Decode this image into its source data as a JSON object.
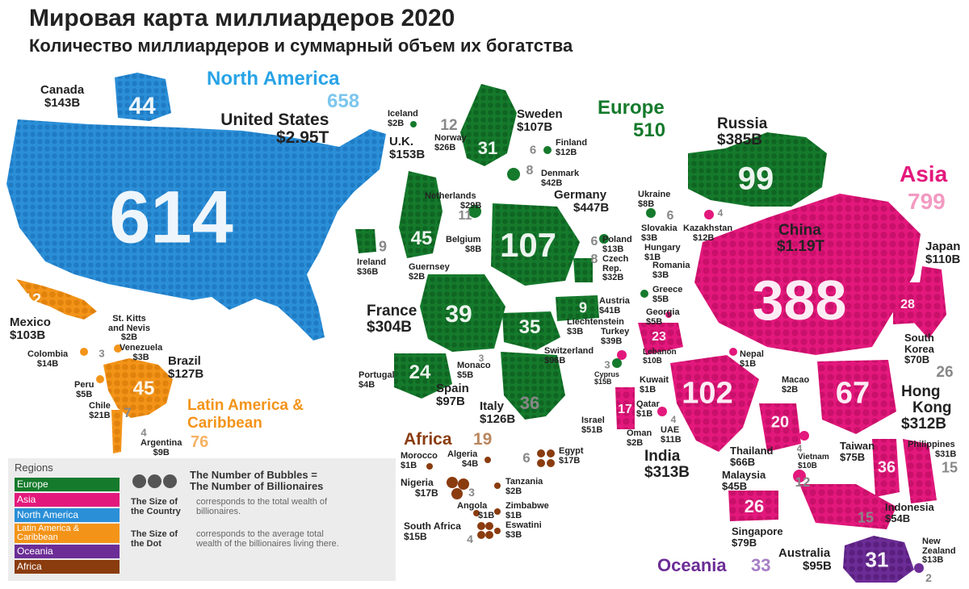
{
  "title": "Мировая карта миллиардеров 2020",
  "subtitle": "Количество миллиардеров и суммарный объем их богатства",
  "colors": {
    "north_america": "#2b8fd8",
    "north_america_label": "#28a3e6",
    "europe": "#157a2c",
    "asia": "#e3187c",
    "latin_america": "#f39419",
    "africa": "#8a3c0f",
    "oceania": "#6c2d96"
  },
  "regions": {
    "north_america": {
      "name": "North America",
      "count": "658"
    },
    "europe": {
      "name": "Europe",
      "count": "510"
    },
    "asia": {
      "name": "Asia",
      "count": "799"
    },
    "latin_america": {
      "name": "Latin America & Caribbean",
      "name_line1": "Latin America &",
      "name_line2": "Caribbean",
      "count": "76"
    },
    "africa": {
      "name": "Africa",
      "count": "19"
    },
    "oceania": {
      "name": "Oceania",
      "count": "33"
    }
  },
  "countries": {
    "canada": {
      "name": "Canada",
      "wealth": "$143B",
      "count": "44"
    },
    "usa": {
      "name": "United States",
      "wealth": "$2.95T",
      "count": "614"
    },
    "mexico": {
      "name": "Mexico",
      "wealth": "$103B",
      "count": "12"
    },
    "st_kitts": {
      "name_line1": "St. Kitts",
      "name_line2": "and Nevis",
      "wealth": "$2B",
      "count": "2"
    },
    "venezuela": {
      "name": "Venezuela",
      "wealth": "$3B",
      "count": "1"
    },
    "colombia": {
      "name": "Colombia",
      "wealth": "$14B",
      "count": "3"
    },
    "brazil": {
      "name": "Brazil",
      "wealth": "$127B",
      "count": "45"
    },
    "peru": {
      "name": "Peru",
      "wealth": "$5B",
      "count": "2"
    },
    "chile": {
      "name": "Chile",
      "wealth": "$21B",
      "count": "7"
    },
    "argentina": {
      "name": "Argentina",
      "wealth": "$9B",
      "count": "4"
    },
    "iceland": {
      "name": "Iceland",
      "wealth": "$2B",
      "count": "1"
    },
    "norway": {
      "name": "Norway",
      "wealth": "$26B",
      "count": "12"
    },
    "sweden": {
      "name": "Sweden",
      "wealth": "$107B",
      "count": "31"
    },
    "finland": {
      "name": "Finland",
      "wealth": "$12B",
      "count": "6"
    },
    "denmark": {
      "name": "Denmark",
      "wealth": "$42B",
      "count": "8"
    },
    "uk": {
      "name": "U.K.",
      "wealth": "$153B",
      "count": "45"
    },
    "netherlands": {
      "name": "Netherlands",
      "wealth": "$29B",
      "count": "11"
    },
    "germany": {
      "name": "Germany",
      "wealth": "$447B",
      "count": "107"
    },
    "ireland": {
      "name": "Ireland",
      "wealth": "$36B",
      "count": "9"
    },
    "belgium": {
      "name": "Belgium",
      "wealth": "$8B",
      "count": "1"
    },
    "guernsey": {
      "name": "Guernsey",
      "wealth": "$2B",
      "count": "1"
    },
    "france": {
      "name": "France",
      "wealth": "$304B",
      "count": "39"
    },
    "portugal": {
      "name": "Portugal",
      "wealth": "$4B",
      "count": "1"
    },
    "spain": {
      "name": "Spain",
      "wealth": "$97B",
      "count": "24"
    },
    "monaco": {
      "name": "Monaco",
      "wealth": "$5B",
      "count": "3"
    },
    "switzerland": {
      "name": "Switzerland",
      "wealth": "$96B",
      "count": "35"
    },
    "liechtenstein": {
      "name": "Liechtenstein",
      "wealth": "$3B",
      "count": "1"
    },
    "austria": {
      "name": "Austria",
      "wealth": "$41B",
      "count": "9"
    },
    "italy": {
      "name": "Italy",
      "wealth": "$126B",
      "count": "36"
    },
    "poland": {
      "name": "Poland",
      "wealth": "$13B",
      "count": "6"
    },
    "czech": {
      "name_line1": "Czech",
      "name_line2": "Rep.",
      "wealth": "$32B",
      "count": "8"
    },
    "slovakia": {
      "name": "Slovakia",
      "wealth": "$3B",
      "count": "2"
    },
    "hungary": {
      "name": "Hungary",
      "wealth": "$1B",
      "count": "1"
    },
    "romania": {
      "name": "Romania",
      "wealth": "$3B",
      "count": "2"
    },
    "ukraine": {
      "name": "Ukraine",
      "wealth": "$8B",
      "count": "6"
    },
    "greece": {
      "name": "Greece",
      "wealth": "$5B",
      "count": "3"
    },
    "cyprus": {
      "name": "Cyprus",
      "wealth": "$15B",
      "count": "3"
    },
    "russia": {
      "name": "Russia",
      "wealth": "$385B",
      "count": "99"
    },
    "kazakhstan": {
      "name": "Kazakhstan",
      "wealth": "$12B",
      "count": "4"
    },
    "georgia": {
      "name": "Georgia",
      "wealth": "$5B",
      "count": "1"
    },
    "turkey": {
      "name": "Turkey",
      "wealth": "$39B",
      "count": "23"
    },
    "lebanon": {
      "name": "Lebanon",
      "wealth": "$10B",
      "count": "6"
    },
    "israel": {
      "name": "Israel",
      "wealth": "$51B",
      "count": "17"
    },
    "kuwait": {
      "name": "Kuwait",
      "wealth": "$1B",
      "count": "1"
    },
    "qatar": {
      "name": "Qatar",
      "wealth": "$1B",
      "count": "1"
    },
    "oman": {
      "name": "Oman",
      "wealth": "$2B",
      "count": "1"
    },
    "uae": {
      "name": "UAE",
      "wealth": "$11B",
      "count": "4"
    },
    "india": {
      "name": "India",
      "wealth": "$313B",
      "count": "102"
    },
    "nepal": {
      "name": "Nepal",
      "wealth": "$1B",
      "count": "1"
    },
    "china": {
      "name": "China",
      "wealth": "$1.19T",
      "count": "388"
    },
    "japan": {
      "name": "Japan",
      "wealth": "$110B",
      "count": "28"
    },
    "south_korea": {
      "name_line1": "South",
      "name_line2": "Korea",
      "wealth": "$70B",
      "count": "26"
    },
    "macao": {
      "name": "Macao",
      "wealth": "$2B",
      "count": "1"
    },
    "hong_kong": {
      "name_line1": "Hong",
      "name_line2": "Kong",
      "wealth": "$312B",
      "count": "67"
    },
    "thailand": {
      "name": "Thailand",
      "wealth": "$66B",
      "count": "20"
    },
    "vietnam": {
      "name": "Vietnam",
      "wealth": "$10B",
      "count": "4"
    },
    "malaysia": {
      "name": "Malaysia",
      "wealth": "$45B",
      "count": "12"
    },
    "taiwan": {
      "name": "Taiwan",
      "wealth": "$75B",
      "count": "36"
    },
    "philippines": {
      "name": "Philippines",
      "wealth": "$31B",
      "count": "15"
    },
    "singapore": {
      "name": "Singapore",
      "wealth": "$79B",
      "count": "26"
    },
    "indonesia": {
      "name": "Indonesia",
      "wealth": "$54B",
      "count": "15"
    },
    "australia": {
      "name": "Australia",
      "wealth": "$95B",
      "count": "31"
    },
    "new_zealand": {
      "name_line1": "New",
      "name_line2": "Zealand",
      "wealth": "$13B",
      "count": "2"
    },
    "morocco": {
      "name": "Morocco",
      "wealth": "$1B",
      "count": "1"
    },
    "algeria": {
      "name": "Algeria",
      "wealth": "$4B",
      "count": "1"
    },
    "egypt": {
      "name": "Egypt",
      "wealth": "$17B",
      "count": "6"
    },
    "nigeria": {
      "name": "Nigeria",
      "wealth": "$17B",
      "count": "3"
    },
    "tanzania": {
      "name": "Tanzania",
      "wealth": "$2B",
      "count": "1"
    },
    "angola": {
      "name": "Angola",
      "wealth": "$1B",
      "count": "1"
    },
    "zimbabwe": {
      "name": "Zimbabwe",
      "wealth": "$1B",
      "count": "1"
    },
    "eswatini": {
      "name": "Eswatini",
      "wealth": "$3B",
      "count": "1"
    },
    "south_africa": {
      "name": "South Africa",
      "wealth": "$15B",
      "count": "4"
    }
  },
  "legend": {
    "title": "Regions",
    "items": [
      {
        "label": "Europe",
        "color": "#157a2c"
      },
      {
        "label": "Asia",
        "color": "#e3187c"
      },
      {
        "label": "North America",
        "color": "#2b8fd8"
      },
      {
        "label": "Latin America & Caribbean",
        "color": "#f39419"
      },
      {
        "label": "Oceania",
        "color": "#6c2d96"
      },
      {
        "label": "Africa",
        "color": "#8a3c0f"
      }
    ],
    "bubbles_line1": "The Number of Bubbles =",
    "bubbles_line2": "The Number of Billionaires",
    "size_country_key_1": "The Size of",
    "size_country_key_2": "the Country",
    "size_country_desc_1": "corresponds to the total wealth of",
    "size_country_desc_2": "billionaires.",
    "size_dot_key_1": "The Size of",
    "size_dot_key_2": "the Dot",
    "size_dot_desc_1": "corresponds to the average total",
    "size_dot_desc_2": "wealth of the billionaires living there."
  }
}
